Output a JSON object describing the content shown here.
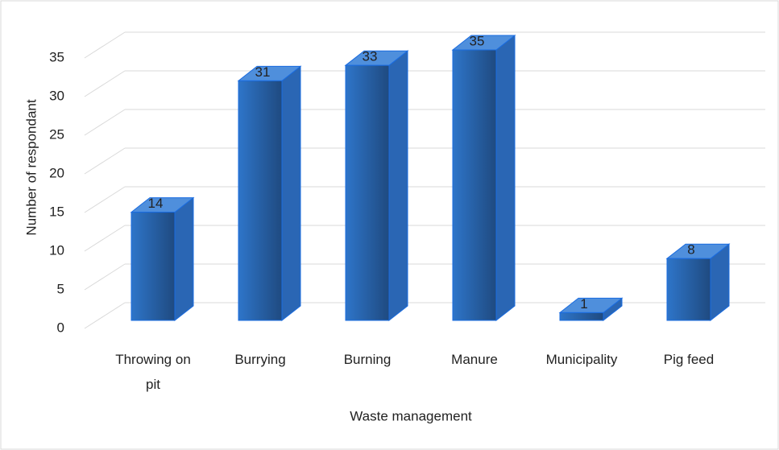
{
  "chart_data": {
    "type": "bar3d",
    "x_label": "Waste management",
    "y_label": "Number of respondant",
    "categories": [
      "Throwing on pit",
      "Burrying",
      "Burning",
      "Manure",
      "Municipality",
      "Pig feed"
    ],
    "values": [
      14,
      31,
      33,
      35,
      1,
      8
    ],
    "color": "#2e75c9",
    "ylim": [
      0,
      35
    ],
    "yticks": [
      0,
      5,
      10,
      15,
      20,
      25,
      30,
      35
    ],
    "grid": true
  }
}
